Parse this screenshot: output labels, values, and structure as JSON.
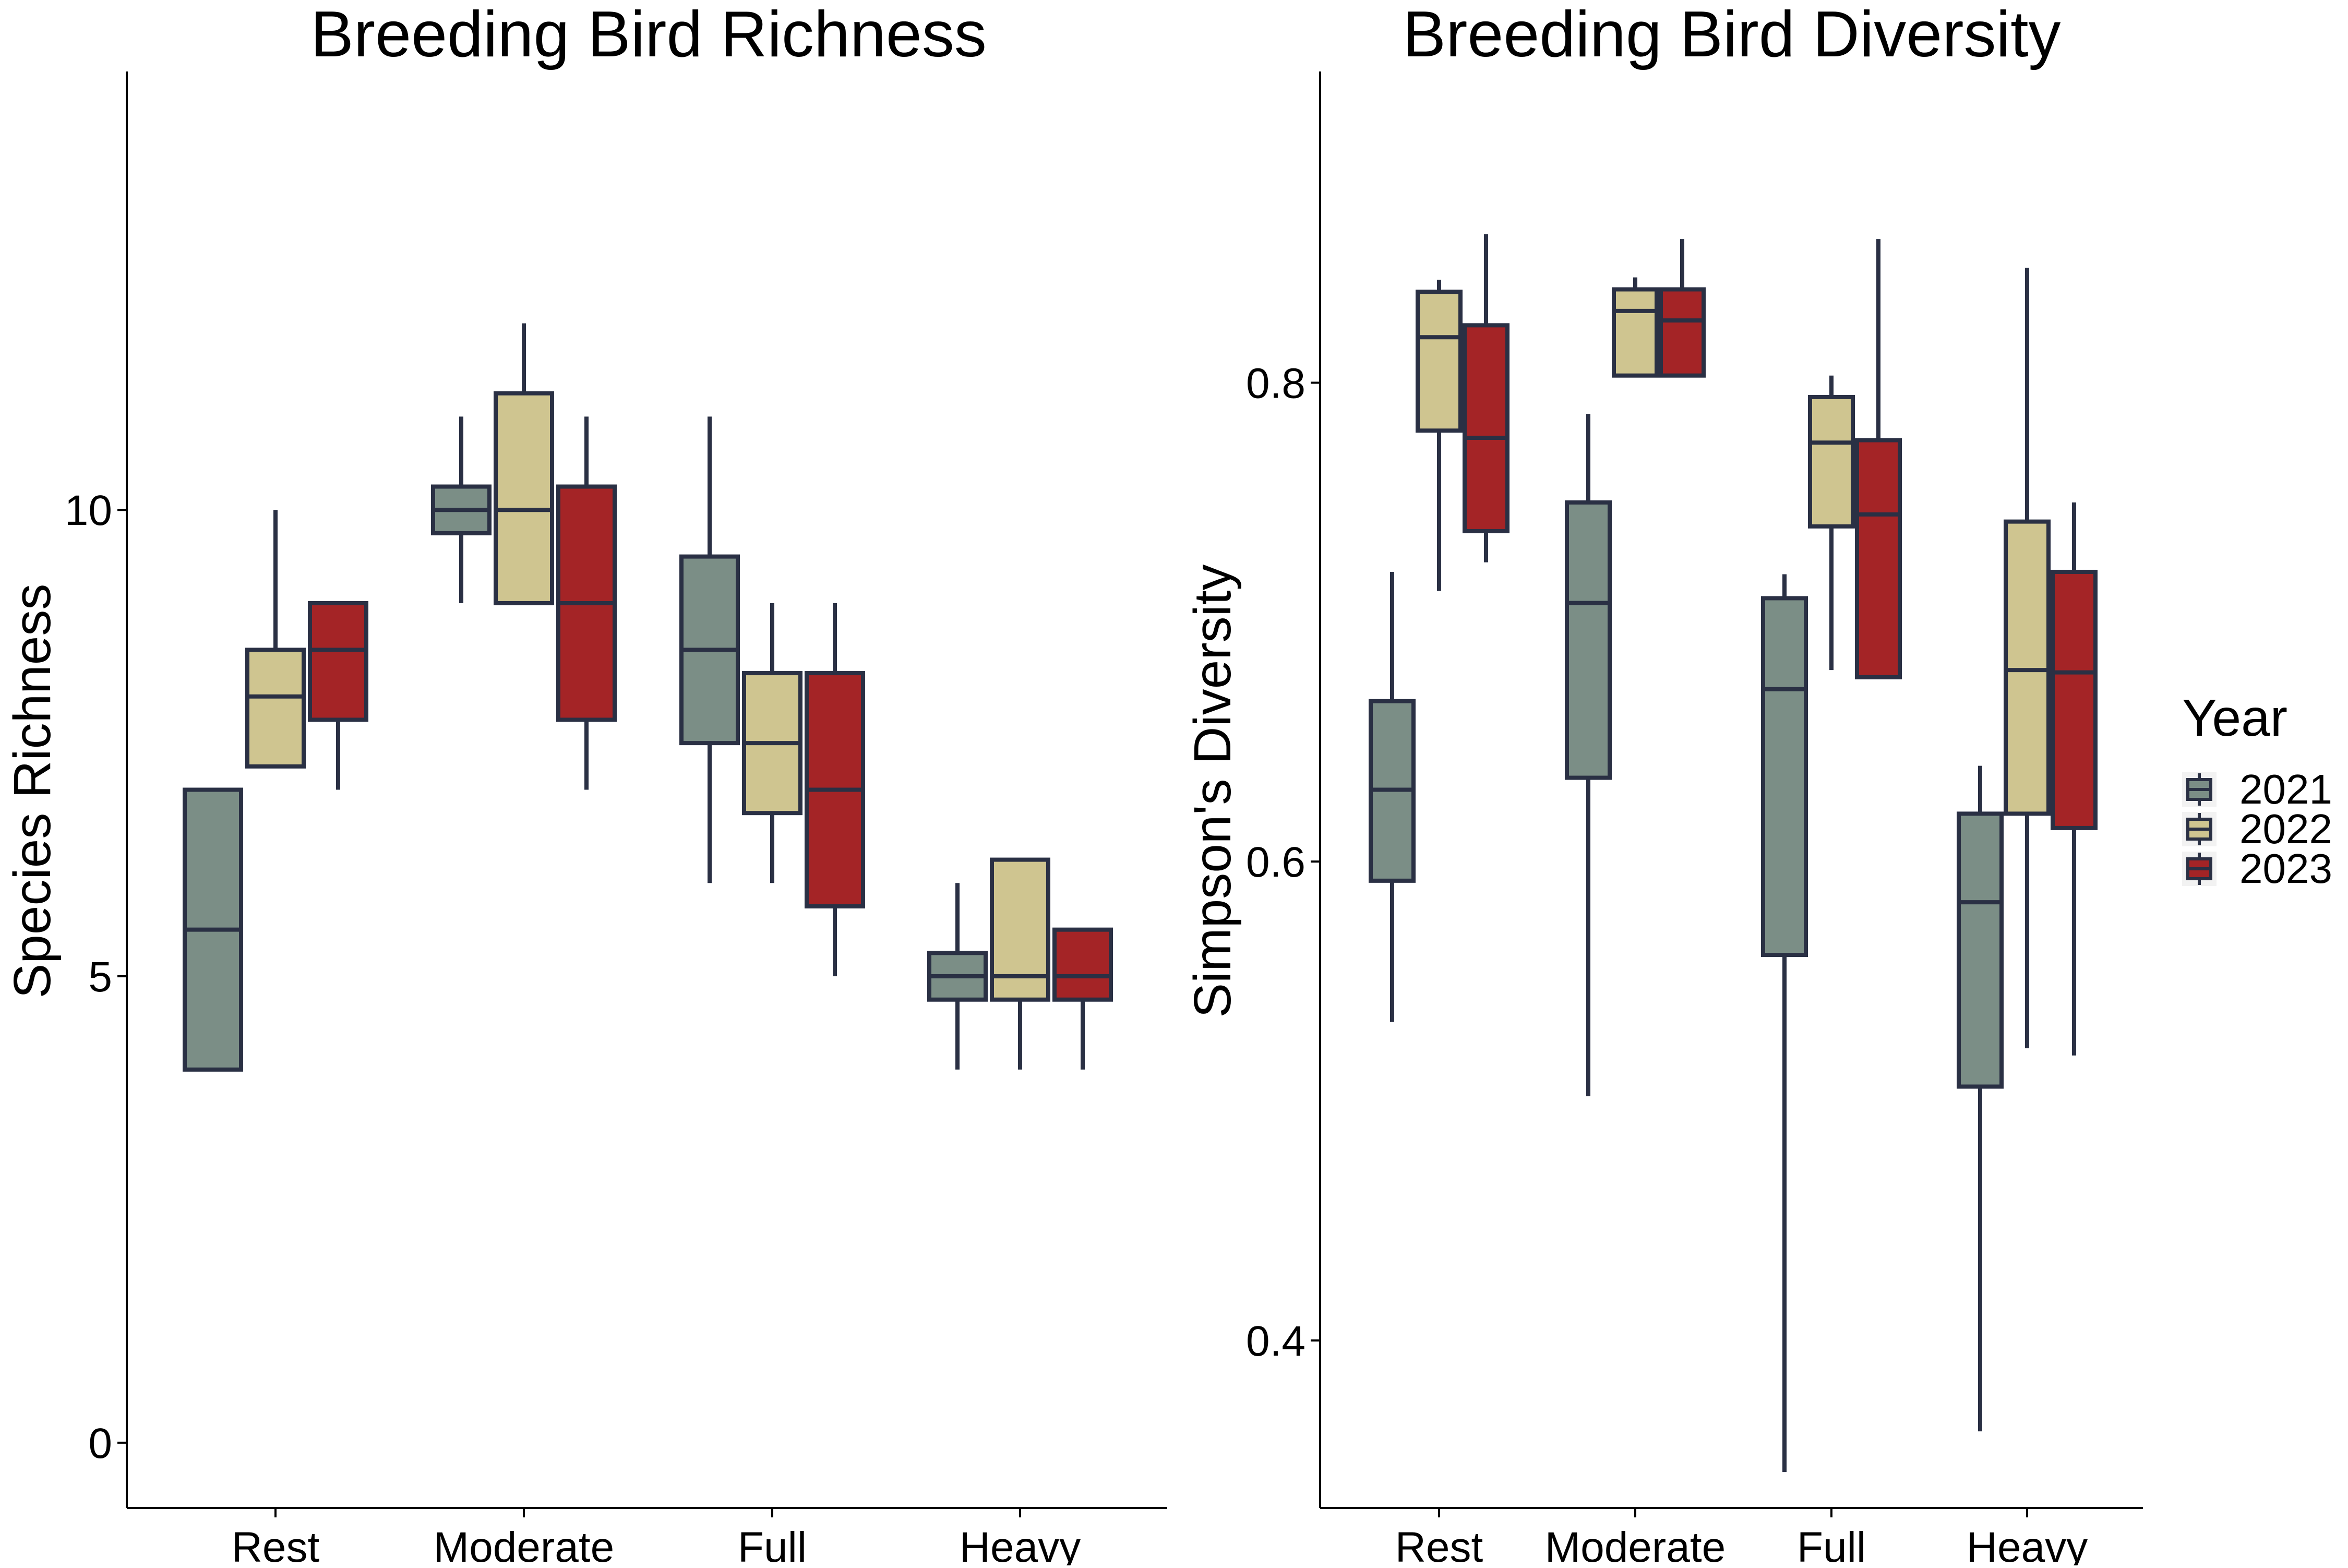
{
  "colors": {
    "2021": "#7b8e86",
    "2022": "#cfc590",
    "2023": "#a42426",
    "outline": "#2a3044"
  },
  "legend": {
    "title": "Year",
    "placement": "right",
    "entries": [
      "2021",
      "2022",
      "2023"
    ]
  },
  "chart_data": [
    {
      "type": "box",
      "title": "Breeding Bird Richness",
      "xlabel": "",
      "ylabel": "Species Richness",
      "ylim": [
        -0.7,
        14.7
      ],
      "yticks": [
        0,
        5,
        10
      ],
      "yticklabels": [
        "0",
        "5",
        "10"
      ],
      "categories": [
        "Rest",
        "Moderate",
        "Full",
        "Heavy"
      ],
      "series": [
        {
          "name": "2021",
          "boxes": [
            {
              "min": 4,
              "q1": 4,
              "median": 5.5,
              "q3": 7,
              "max": 7
            },
            {
              "min": 9,
              "q1": 9.75,
              "median": 10,
              "q3": 10.25,
              "max": 11
            },
            {
              "min": 6,
              "q1": 7.5,
              "median": 8.5,
              "q3": 9.5,
              "max": 11
            },
            {
              "min": 4,
              "q1": 4.75,
              "median": 5,
              "q3": 5.25,
              "max": 6
            }
          ]
        },
        {
          "name": "2022",
          "boxes": [
            {
              "min": 7.25,
              "q1": 7.25,
              "median": 8,
              "q3": 8.5,
              "max": 10
            },
            {
              "min": 9,
              "q1": 9,
              "median": 10,
              "q3": 11.25,
              "max": 12
            },
            {
              "min": 6,
              "q1": 6.75,
              "median": 7.5,
              "q3": 8.25,
              "max": 9
            },
            {
              "min": 4,
              "q1": 4.75,
              "median": 5,
              "q3": 6.25,
              "max": 6.25
            }
          ]
        },
        {
          "name": "2023",
          "boxes": [
            {
              "min": 7,
              "q1": 7.75,
              "median": 8.5,
              "q3": 9,
              "max": 9
            },
            {
              "min": 7,
              "q1": 7.75,
              "median": 9,
              "q3": 10.25,
              "max": 11
            },
            {
              "min": 5,
              "q1": 5.75,
              "median": 7,
              "q3": 8.25,
              "max": 9
            },
            {
              "min": 4,
              "q1": 4.75,
              "median": 5,
              "q3": 5.5,
              "max": 5.5
            }
          ]
        }
      ]
    },
    {
      "type": "box",
      "title": "Breeding Bird Diversity",
      "xlabel": "",
      "ylabel": "Simpson's Diversity",
      "ylim": [
        0.33,
        0.93
      ],
      "yticks": [
        0.4,
        0.6,
        0.8
      ],
      "yticklabels": [
        "0.4",
        "0.6",
        "0.8"
      ],
      "categories": [
        "Rest",
        "Moderate",
        "Full",
        "Heavy"
      ],
      "series": [
        {
          "name": "2021",
          "boxes": [
            {
              "min": 0.533,
              "q1": 0.592,
              "median": 0.63,
              "q3": 0.667,
              "max": 0.721
            },
            {
              "min": 0.502,
              "q1": 0.635,
              "median": 0.708,
              "q3": 0.75,
              "max": 0.787
            },
            {
              "min": 0.345,
              "q1": 0.561,
              "median": 0.672,
              "q3": 0.71,
              "max": 0.72
            },
            {
              "min": 0.362,
              "q1": 0.506,
              "median": 0.583,
              "q3": 0.62,
              "max": 0.64
            }
          ]
        },
        {
          "name": "2022",
          "boxes": [
            {
              "min": 0.713,
              "q1": 0.78,
              "median": 0.819,
              "q3": 0.838,
              "max": 0.843
            },
            {
              "min": 0.803,
              "q1": 0.803,
              "median": 0.83,
              "q3": 0.839,
              "max": 0.844
            },
            {
              "min": 0.68,
              "q1": 0.74,
              "median": 0.775,
              "q3": 0.794,
              "max": 0.803
            },
            {
              "min": 0.522,
              "q1": 0.62,
              "median": 0.68,
              "q3": 0.742,
              "max": 0.848
            }
          ]
        },
        {
          "name": "2023",
          "boxes": [
            {
              "min": 0.725,
              "q1": 0.738,
              "median": 0.777,
              "q3": 0.824,
              "max": 0.862
            },
            {
              "min": 0.803,
              "q1": 0.803,
              "median": 0.826,
              "q3": 0.839,
              "max": 0.86
            },
            {
              "min": 0.677,
              "q1": 0.677,
              "median": 0.745,
              "q3": 0.776,
              "max": 0.86
            },
            {
              "min": 0.519,
              "q1": 0.614,
              "median": 0.679,
              "q3": 0.721,
              "max": 0.75
            }
          ]
        }
      ]
    }
  ]
}
